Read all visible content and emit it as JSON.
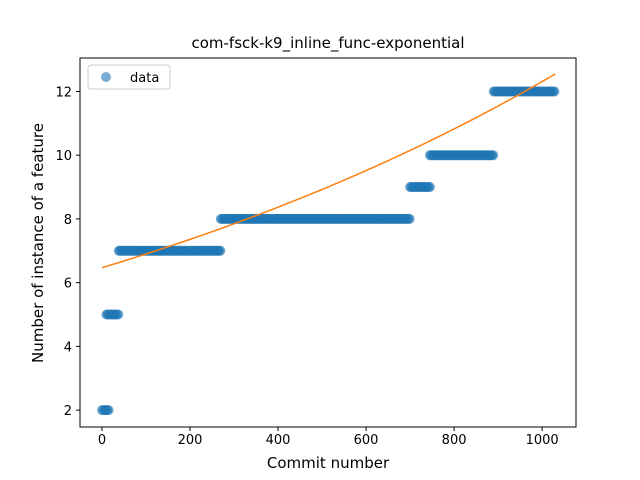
{
  "chart_data": {
    "type": "scatter",
    "title": "com-fsck-k9_inline_func-exponential",
    "xlabel": "Commit number",
    "ylabel": "Number of instance of a feature",
    "xlim": [
      -50,
      1077
    ],
    "ylim": [
      1.47,
      13.05
    ],
    "xticks": [
      0,
      200,
      400,
      600,
      800,
      1000
    ],
    "yticks": [
      2,
      4,
      6,
      8,
      10,
      12
    ],
    "legend": {
      "placement": "top-left",
      "entries": [
        "data"
      ]
    },
    "colors": {
      "data": "#1f77b4",
      "fit": "#ff7f0e"
    },
    "series": [
      {
        "name": "data",
        "kind": "scatter",
        "segments": [
          {
            "x_start": 0,
            "x_end": 15,
            "y": 2
          },
          {
            "x_start": 10,
            "x_end": 38,
            "y": 5
          },
          {
            "x_start": 38,
            "x_end": 270,
            "y": 7
          },
          {
            "x_start": 270,
            "x_end": 700,
            "y": 8
          },
          {
            "x_start": 700,
            "x_end": 745,
            "y": 9
          },
          {
            "x_start": 745,
            "x_end": 890,
            "y": 10
          },
          {
            "x_start": 890,
            "x_end": 1030,
            "y": 12
          }
        ]
      },
      {
        "kind": "line",
        "model": "exponential",
        "points": [
          [
            0,
            6.47
          ],
          [
            200,
            6.86
          ],
          [
            400,
            7.49
          ],
          [
            600,
            8.52
          ],
          [
            800,
            10.13
          ],
          [
            1030,
            12.55
          ]
        ]
      }
    ]
  }
}
